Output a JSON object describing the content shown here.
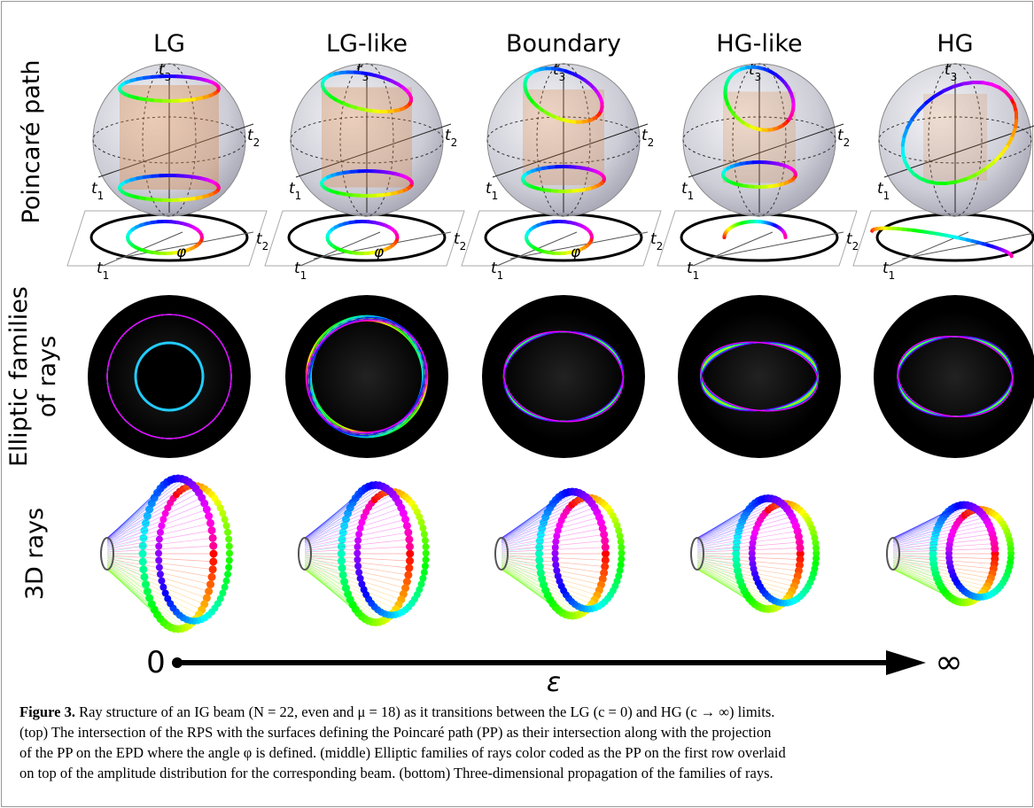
{
  "figure": {
    "columns": [
      "LG",
      "LG-like",
      "Boundary",
      "HG-like",
      "HG"
    ],
    "row_labels": {
      "poincare": [
        "Poincaré path"
      ],
      "elliptic": [
        "Elliptic families",
        "of rays"
      ],
      "rays3d": [
        "3D rays"
      ]
    },
    "axis_symbol": "t",
    "axis_indices": [
      "1",
      "2",
      "3"
    ],
    "angle_symbol": "φ",
    "axis": {
      "start": "0",
      "end": "∞",
      "label": "ε"
    }
  },
  "caption": {
    "label": "Figure 3.",
    "lines": [
      "Ray structure of an IG beam (N = 22, even and μ = 18) as it transitions between the LG (c = 0) and HG (c → ∞) limits.",
      "(top) The intersection of the RPS with the surfaces defining the Poincaré path (PP) as their intersection along with the projection",
      "of the PP on the EPD where the angle φ is defined. (middle) Elliptic families of rays color coded as the PP on the first row overlaid",
      "on top of the amplitude distribution for the corresponding beam. (bottom) Three-dimensional propagation of the families of rays."
    ]
  }
}
